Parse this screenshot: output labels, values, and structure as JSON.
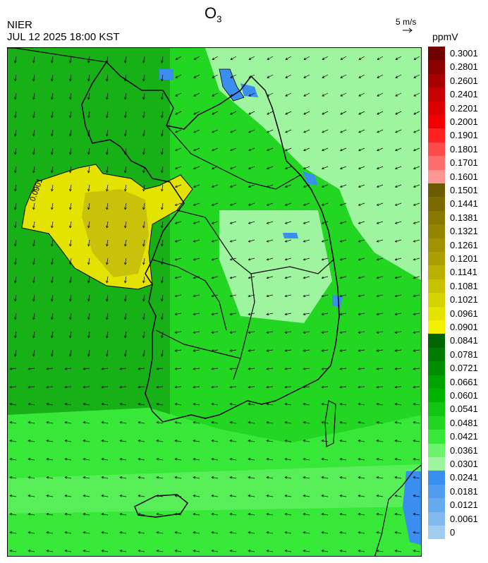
{
  "header": {
    "title_main": "O",
    "title_sub": "3",
    "agency": "NIER",
    "datetime": "JUL 12 2025 18:00 KST",
    "wind_reference": "5 m/s",
    "unit": "ppmV"
  },
  "map": {
    "contour_label": "0.0901",
    "colors": {
      "water": "#3a8ef0",
      "low_green": "#9ff59f",
      "mid_green": "#3ed13e",
      "deep_green": "#17b017",
      "high_yellow": "#e6e600",
      "olive": "#a8a000",
      "coast": "#000000",
      "arrows": "#000000"
    }
  },
  "legend": {
    "entries": [
      {
        "label": "0.3001",
        "color": "#6e0000"
      },
      {
        "label": "0.2801",
        "color": "#8c0000"
      },
      {
        "label": "0.2601",
        "color": "#a80000"
      },
      {
        "label": "0.2401",
        "color": "#c40000"
      },
      {
        "label": "0.2201",
        "color": "#dc0000"
      },
      {
        "label": "0.2001",
        "color": "#f00000"
      },
      {
        "label": "0.1901",
        "color": "#ff2020"
      },
      {
        "label": "0.1801",
        "color": "#ff4a4a"
      },
      {
        "label": "0.1701",
        "color": "#ff6e6e"
      },
      {
        "label": "0.1601",
        "color": "#ff9696"
      },
      {
        "label": "0.1501",
        "color": "#6b5a00"
      },
      {
        "label": "0.1441",
        "color": "#7a6a00"
      },
      {
        "label": "0.1381",
        "color": "#867800"
      },
      {
        "label": "0.1321",
        "color": "#938500"
      },
      {
        "label": "0.1261",
        "color": "#a09200"
      },
      {
        "label": "0.1201",
        "color": "#ad9f00"
      },
      {
        "label": "0.1141",
        "color": "#bab000"
      },
      {
        "label": "0.1081",
        "color": "#c8c000"
      },
      {
        "label": "0.1021",
        "color": "#d6d200"
      },
      {
        "label": "0.0961",
        "color": "#e4e200"
      },
      {
        "label": "0.0901",
        "color": "#f2f000"
      },
      {
        "label": "0.0841",
        "color": "#006400"
      },
      {
        "label": "0.0781",
        "color": "#007a00"
      },
      {
        "label": "0.0721",
        "color": "#008e00"
      },
      {
        "label": "0.0661",
        "color": "#00a200"
      },
      {
        "label": "0.0601",
        "color": "#00b400"
      },
      {
        "label": "0.0541",
        "color": "#10c610"
      },
      {
        "label": "0.0481",
        "color": "#22d622"
      },
      {
        "label": "0.0421",
        "color": "#38e838"
      },
      {
        "label": "0.0361",
        "color": "#6cf26c"
      },
      {
        "label": "0.0301",
        "color": "#9ff59f"
      },
      {
        "label": "0.0241",
        "color": "#3a8ef0"
      },
      {
        "label": "0.0181",
        "color": "#4f9cf0"
      },
      {
        "label": "0.0121",
        "color": "#66aaf0"
      },
      {
        "label": "0.0061",
        "color": "#82baf0"
      },
      {
        "label": "0",
        "color": "#a0ccf0"
      }
    ]
  }
}
